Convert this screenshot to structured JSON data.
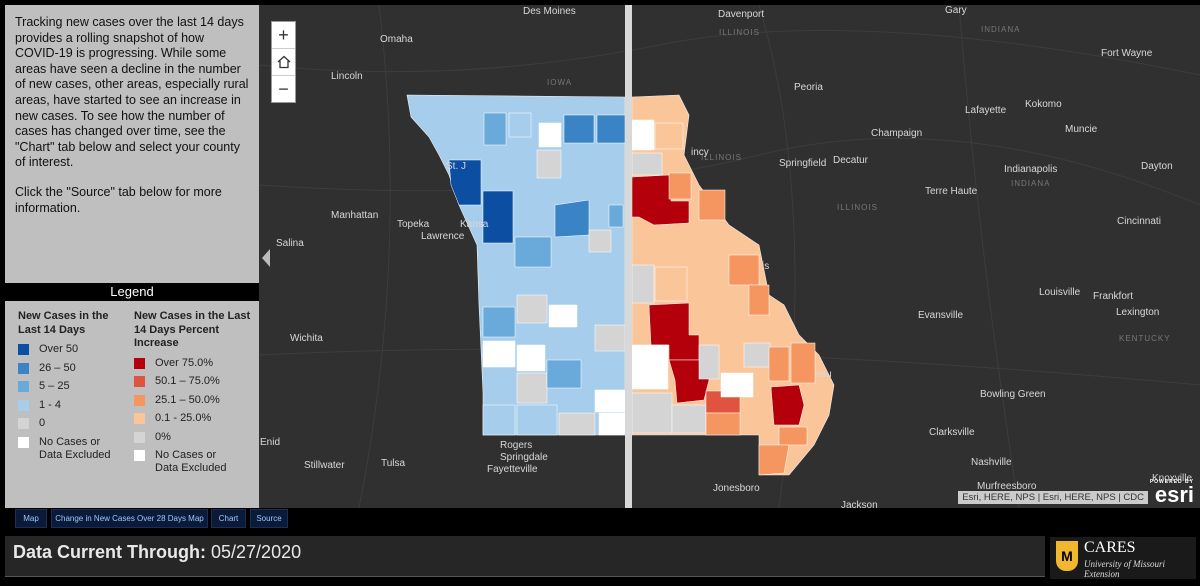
{
  "intro": {
    "paragraph1": "Tracking new cases over the last 14 days provides a rolling snapshot of how COVID-19 is progressing. While some areas have seen a decline in the number of new cases, other areas, especially rural areas, have started to see an increase in new cases. To see how the number of cases has changed over time, see the \"Chart\" tab below and select your county of interest.",
    "paragraph2": "Click the \"Source\" tab below for more information."
  },
  "legend": {
    "header": "Legend",
    "left": {
      "title": "New Cases in the Last 14 Days",
      "items": [
        {
          "label": "Over 50",
          "color": "#0b4ea2"
        },
        {
          "label": "26 – 50",
          "color": "#3a84c6"
        },
        {
          "label": "5 – 25",
          "color": "#6aaadb"
        },
        {
          "label": "1 - 4",
          "color": "#a6cdeb"
        },
        {
          "label": "0",
          "color": "#d4d4d4"
        },
        {
          "label": "No Cases or Data Excluded",
          "color": "#ffffff"
        }
      ]
    },
    "right": {
      "title": "New Cases in the Last 14 Days Percent Increase",
      "items": [
        {
          "label": "Over 75.0%",
          "color": "#b3000b"
        },
        {
          "label": "50.1 – 75.0%",
          "color": "#e0533e"
        },
        {
          "label": "25.1 – 50.0%",
          "color": "#f5955f"
        },
        {
          "label": "0.1 - 25.0%",
          "color": "#fbc59a"
        },
        {
          "label": "0%",
          "color": "#d4d4d4"
        },
        {
          "label": "No Cases or Data Excluded",
          "color": "#ffffff"
        }
      ]
    }
  },
  "map": {
    "zoom_in": "+",
    "home_icon": "home-icon",
    "zoom_out": "−",
    "cities": [
      "Des Moines",
      "Davenport",
      "Gary",
      "Omaha",
      "Fort Wayne",
      "Lincoln",
      "Peoria",
      "Lafayette",
      "Kokomo",
      "Muncie",
      "Champaign",
      "Springfield",
      "Decatur",
      "Indianapolis",
      "Dayton",
      "Terre Haute",
      "Manhattan",
      "Topeka",
      "Lawrence",
      "Cincinnati",
      "Salina",
      "Frankfort",
      "Louisville",
      "Evansville",
      "Lexington",
      "Wichita",
      "Bowling Green",
      "Enid",
      "Clarksville",
      "Stillwater",
      "Tulsa",
      "Rogers",
      "Springdale",
      "Fayetteville",
      "Nashville",
      "Murfreesboro",
      "Jonesboro",
      "Jackson",
      "Knoxville",
      "St. J",
      "Kansa",
      "incy",
      "is",
      "eau"
    ],
    "states": [
      "IOWA",
      "ILLINOIS",
      "INDIANA",
      "ILLINOIS",
      "INDIANA",
      "ILLINOIS",
      "KENTUCKY"
    ],
    "attribution": "Esri, HERE, NPS | Esri, HERE, NPS | CDC",
    "esri_powered": "POWERED BY",
    "esri": "esri"
  },
  "tabs": [
    {
      "label": "Map"
    },
    {
      "label": "Change in New Cases Over 28 Days Map"
    },
    {
      "label": "Chart"
    },
    {
      "label": "Source"
    }
  ],
  "footer": {
    "label": "Data Current Through:",
    "date": "05/27/2020"
  },
  "branding": {
    "shield": "M",
    "name": "CARES",
    "subtitle": "University of Missouri Extension"
  }
}
